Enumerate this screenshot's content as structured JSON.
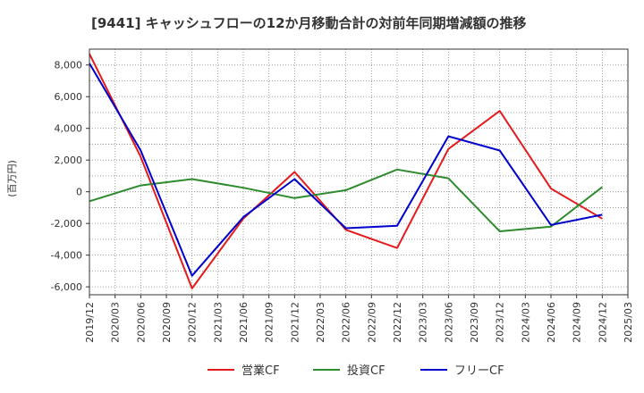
{
  "chart_data": {
    "type": "line",
    "title": "[9441]  キャッシュフローの12か月移動合計の対前年同期増減額の推移",
    "ylabel": "(百万円)",
    "xlabel": "",
    "x_ticks": [
      "2019/12",
      "2020/03",
      "2020/06",
      "2020/09",
      "2020/12",
      "2021/03",
      "2021/06",
      "2021/09",
      "2021/12",
      "2022/03",
      "2022/06",
      "2022/09",
      "2022/12",
      "2023/03",
      "2023/06",
      "2023/09",
      "2023/12",
      "2024/03",
      "2024/06",
      "2024/09",
      "2024/12",
      "2025/03"
    ],
    "y_ticks": [
      "-6,000",
      "-4,000",
      "-2,000",
      "0",
      "2,000",
      "4,000",
      "6,000",
      "8,000"
    ],
    "ylim": [
      -6500,
      9000
    ],
    "grid": true,
    "legend_position": "bottom",
    "series": [
      {
        "name": "営業CF",
        "color": "#e41a1c",
        "points": [
          {
            "x": "2019/12",
            "y": 8700
          },
          {
            "x": "2020/06",
            "y": 2200
          },
          {
            "x": "2020/12",
            "y": -6100
          },
          {
            "x": "2021/06",
            "y": -1700
          },
          {
            "x": "2021/12",
            "y": 1250
          },
          {
            "x": "2022/06",
            "y": -2400
          },
          {
            "x": "2022/12",
            "y": -3550
          },
          {
            "x": "2023/06",
            "y": 2700
          },
          {
            "x": "2023/12",
            "y": 5100
          },
          {
            "x": "2024/06",
            "y": 200
          },
          {
            "x": "2024/12",
            "y": -1700
          }
        ]
      },
      {
        "name": "投資CF",
        "color": "#2e8b2e",
        "points": [
          {
            "x": "2019/12",
            "y": -600
          },
          {
            "x": "2020/06",
            "y": 400
          },
          {
            "x": "2020/12",
            "y": 800
          },
          {
            "x": "2021/06",
            "y": 250
          },
          {
            "x": "2021/12",
            "y": -400
          },
          {
            "x": "2022/06",
            "y": 100
          },
          {
            "x": "2022/12",
            "y": 1400
          },
          {
            "x": "2023/06",
            "y": 850
          },
          {
            "x": "2023/12",
            "y": -2500
          },
          {
            "x": "2024/06",
            "y": -2200
          },
          {
            "x": "2024/12",
            "y": 300
          }
        ]
      },
      {
        "name": "フリーCF",
        "color": "#0000cc",
        "points": [
          {
            "x": "2019/12",
            "y": 8100
          },
          {
            "x": "2020/06",
            "y": 2600
          },
          {
            "x": "2020/12",
            "y": -5300
          },
          {
            "x": "2021/06",
            "y": -1600
          },
          {
            "x": "2021/12",
            "y": 800
          },
          {
            "x": "2022/06",
            "y": -2300
          },
          {
            "x": "2022/12",
            "y": -2150
          },
          {
            "x": "2023/06",
            "y": 3500
          },
          {
            "x": "2023/12",
            "y": 2600
          },
          {
            "x": "2024/06",
            "y": -2100
          },
          {
            "x": "2024/12",
            "y": -1450
          }
        ]
      }
    ]
  }
}
